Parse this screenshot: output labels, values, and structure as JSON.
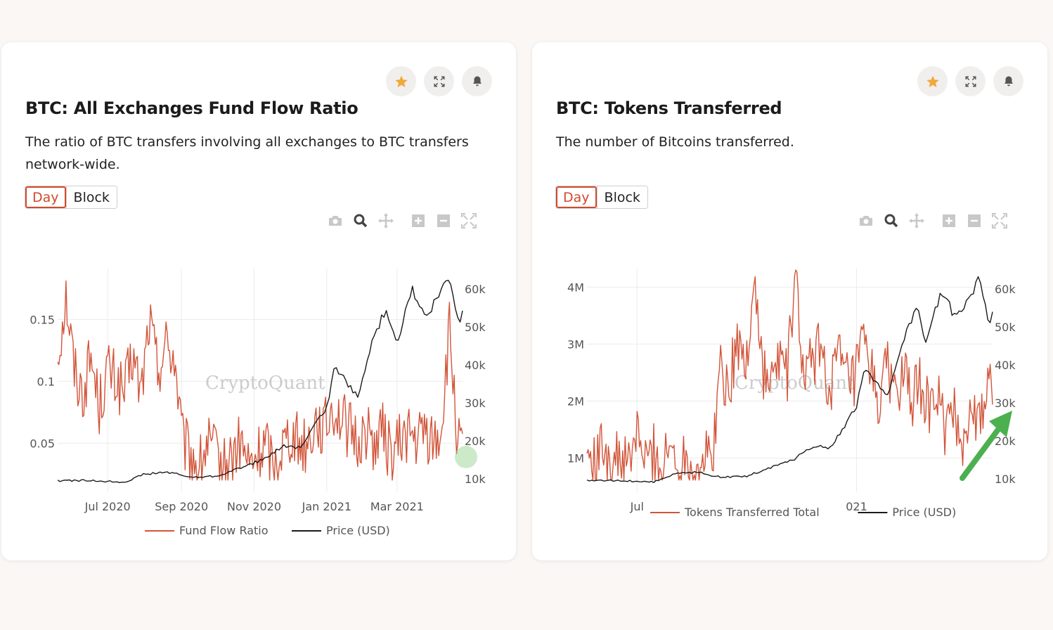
{
  "colors": {
    "ratio_line": "#d2553a",
    "price_line": "#1a1a1a",
    "accent": "#d14a2c",
    "star": "#f0a93a",
    "grid": "#ececec",
    "highlight_circle": "#8fd08a",
    "arrow": "#4caf50"
  },
  "cards": [
    {
      "title": "BTC: All Exchanges Fund Flow Ratio",
      "description": "The ratio of BTC transfers involving all exchanges to BTC transfers network-wide.",
      "tabs": [
        {
          "label": "Day",
          "active": true
        },
        {
          "label": "Block",
          "active": false
        }
      ],
      "actions": [
        "star-icon",
        "expand-icon",
        "bell-icon"
      ],
      "modebar": [
        "camera-icon",
        "zoom-icon",
        "pan-icon",
        "zoom-in-icon",
        "zoom-out-icon",
        "autoscale-icon"
      ],
      "watermark": "CryptoQuant",
      "legend": [
        "Fund Flow Ratio",
        "Price (USD)"
      ]
    },
    {
      "title": "BTC: Tokens Transferred",
      "description": "The number of Bitcoins transferred.",
      "tabs": [
        {
          "label": "Day",
          "active": true
        },
        {
          "label": "Block",
          "active": false
        }
      ],
      "actions": [
        "star-icon",
        "expand-icon",
        "bell-icon"
      ],
      "modebar": [
        "camera-icon",
        "zoom-icon",
        "pan-icon",
        "zoom-in-icon",
        "zoom-out-icon",
        "autoscale-icon"
      ],
      "watermark": "CryptoQuant",
      "legend": [
        "Tokens Transferred Total",
        "Price (USD)"
      ]
    }
  ],
  "chart_data": [
    {
      "type": "line",
      "title": "BTC: All Exchanges Fund Flow Ratio",
      "x_ticks": [
        "Jul 2020",
        "Sep 2020",
        "Nov 2020",
        "Jan 2021",
        "Mar 2021"
      ],
      "x_range": [
        "2020-05-20",
        "2021-04-25"
      ],
      "y_ticks": [
        "0.05",
        "0.1",
        "0.15"
      ],
      "y_range": [
        0.015,
        0.19
      ],
      "y2_ticks": [
        "10k",
        "20k",
        "30k",
        "40k",
        "50k",
        "60k"
      ],
      "y2_range": [
        8000,
        65000
      ],
      "series": [
        {
          "name": "Fund Flow Ratio",
          "axis": "y",
          "x": [
            "2020-05-20",
            "2020-05-27",
            "2020-06-03",
            "2020-06-10",
            "2020-06-17",
            "2020-06-24",
            "2020-07-01",
            "2020-07-08",
            "2020-07-15",
            "2020-07-22",
            "2020-07-29",
            "2020-08-05",
            "2020-08-12",
            "2020-08-19",
            "2020-08-26",
            "2020-09-02",
            "2020-09-09",
            "2020-09-16",
            "2020-09-23",
            "2020-09-30",
            "2020-10-07",
            "2020-10-14",
            "2020-10-21",
            "2020-10-28",
            "2020-11-04",
            "2020-11-11",
            "2020-11-18",
            "2020-11-25",
            "2020-12-02",
            "2020-12-09",
            "2020-12-16",
            "2020-12-23",
            "2020-12-30",
            "2021-01-06",
            "2021-01-13",
            "2021-01-20",
            "2021-01-27",
            "2021-02-03",
            "2021-02-10",
            "2021-02-17",
            "2021-02-24",
            "2021-03-03",
            "2021-03-10",
            "2021-03-17",
            "2021-03-24",
            "2021-03-31",
            "2021-04-07",
            "2021-04-14",
            "2021-04-21",
            "2021-04-25"
          ],
          "values": [
            0.12,
            0.17,
            0.11,
            0.09,
            0.12,
            0.08,
            0.11,
            0.1,
            0.09,
            0.12,
            0.09,
            0.15,
            0.11,
            0.13,
            0.12,
            0.05,
            0.04,
            0.03,
            0.05,
            0.04,
            0.03,
            0.04,
            0.05,
            0.03,
            0.04,
            0.05,
            0.03,
            0.05,
            0.06,
            0.05,
            0.05,
            0.07,
            0.06,
            0.08,
            0.07,
            0.06,
            0.05,
            0.06,
            0.05,
            0.06,
            0.04,
            0.05,
            0.06,
            0.05,
            0.06,
            0.05,
            0.06,
            0.14,
            0.05,
            0.04
          ]
        },
        {
          "name": "Price (USD)",
          "axis": "y2",
          "x": [
            "2020-05-20",
            "2020-06-15",
            "2020-07-15",
            "2020-08-01",
            "2020-08-20",
            "2020-09-10",
            "2020-10-01",
            "2020-10-20",
            "2020-11-10",
            "2020-11-25",
            "2020-12-10",
            "2020-12-20",
            "2021-01-01",
            "2021-01-08",
            "2021-01-20",
            "2021-01-28",
            "2021-02-08",
            "2021-02-20",
            "2021-03-01",
            "2021-03-13",
            "2021-03-25",
            "2021-04-05",
            "2021-04-14",
            "2021-04-22",
            "2021-04-25"
          ],
          "values": [
            9500,
            9600,
            9200,
            11300,
            11800,
            10400,
            10800,
            12900,
            15300,
            18600,
            18300,
            23000,
            29000,
            40000,
            34000,
            32000,
            46000,
            55000,
            46000,
            60000,
            52000,
            58000,
            63000,
            50000,
            55000
          ]
        }
      ]
    },
    {
      "type": "line",
      "title": "BTC: Tokens Transferred",
      "x_ticks": [
        "Jul",
        "021"
      ],
      "x_range": [
        "2020-05-20",
        "2021-04-25"
      ],
      "y_ticks": [
        "1M",
        "2M",
        "3M",
        "4M"
      ],
      "y_range": [
        500000,
        4300000
      ],
      "y2_ticks": [
        "10k",
        "20k",
        "30k",
        "40k",
        "50k",
        "60k"
      ],
      "y2_range": [
        8000,
        65000
      ],
      "series": [
        {
          "name": "Tokens Transferred Total",
          "axis": "y",
          "x": [
            "2020-05-20",
            "2020-05-27",
            "2020-06-03",
            "2020-06-10",
            "2020-06-17",
            "2020-06-24",
            "2020-07-01",
            "2020-07-08",
            "2020-07-15",
            "2020-07-22",
            "2020-07-29",
            "2020-08-05",
            "2020-08-12",
            "2020-08-19",
            "2020-08-26",
            "2020-09-02",
            "2020-09-09",
            "2020-09-16",
            "2020-09-23",
            "2020-09-30",
            "2020-10-07",
            "2020-10-14",
            "2020-10-21",
            "2020-10-28",
            "2020-11-04",
            "2020-11-11",
            "2020-11-18",
            "2020-11-25",
            "2020-12-02",
            "2020-12-09",
            "2020-12-16",
            "2020-12-23",
            "2020-12-30",
            "2021-01-06",
            "2021-01-13",
            "2021-01-20",
            "2021-01-27",
            "2021-02-03",
            "2021-02-10",
            "2021-02-17",
            "2021-02-24",
            "2021-03-03",
            "2021-03-10",
            "2021-03-17",
            "2021-03-24",
            "2021-03-31",
            "2021-04-07",
            "2021-04-14",
            "2021-04-21",
            "2021-04-25"
          ],
          "values": [
            1100000,
            800000,
            1300000,
            900000,
            1000000,
            800000,
            1500000,
            900000,
            1100000,
            800000,
            1200000,
            900000,
            1100000,
            800000,
            1000000,
            1000000,
            2600000,
            2200000,
            3100000,
            2500000,
            4200000,
            2600000,
            2200000,
            2800000,
            2500000,
            4200000,
            2300000,
            2700000,
            3000000,
            2200000,
            2800000,
            2400000,
            2300000,
            3000000,
            2500000,
            2000000,
            2600000,
            2200000,
            2400000,
            2000000,
            2300000,
            1800000,
            2100000,
            1500000,
            1700000,
            1300000,
            1900000,
            1500000,
            2300000,
            2400000
          ]
        },
        {
          "name": "Price (USD)",
          "axis": "y2",
          "x": [
            "2020-05-20",
            "2020-06-15",
            "2020-07-15",
            "2020-08-01",
            "2020-08-20",
            "2020-09-10",
            "2020-10-01",
            "2020-10-20",
            "2020-11-10",
            "2020-11-25",
            "2020-12-10",
            "2020-12-20",
            "2021-01-01",
            "2021-01-08",
            "2021-01-20",
            "2021-01-28",
            "2021-02-08",
            "2021-02-20",
            "2021-03-01",
            "2021-03-13",
            "2021-03-25",
            "2021-04-05",
            "2021-04-14",
            "2021-04-22",
            "2021-04-25"
          ],
          "values": [
            9500,
            9600,
            9200,
            11300,
            11800,
            10400,
            10800,
            12900,
            15300,
            18600,
            18300,
            23000,
            29000,
            40000,
            34000,
            32000,
            46000,
            55000,
            46000,
            60000,
            52000,
            58000,
            63000,
            50000,
            55000
          ]
        }
      ]
    }
  ]
}
